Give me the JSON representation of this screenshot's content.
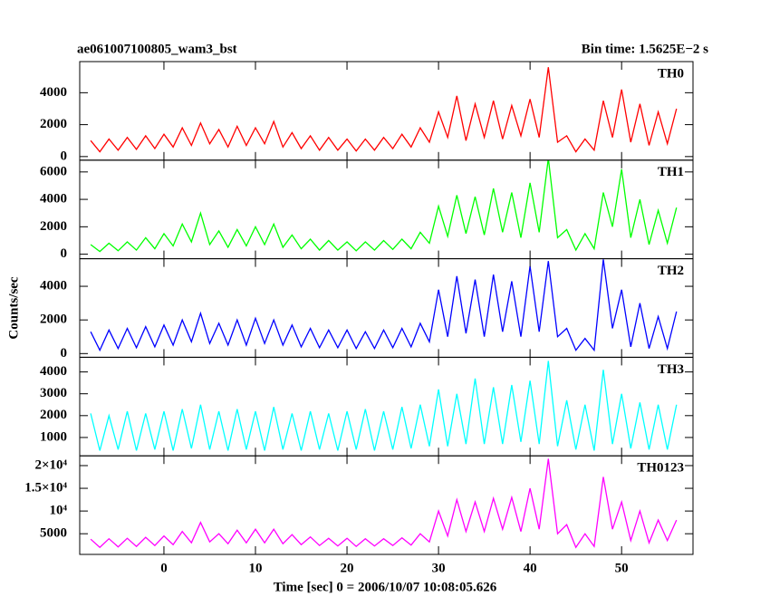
{
  "title": "ae061007100805_wam3_bst",
  "subtitle": "Bin time: 1.5625E−2 s",
  "ylabel": "Counts/sec",
  "xlabel": "Time [sec] 0 = 2006/10/07 10:08:05.626",
  "chart_data": [
    {
      "type": "line",
      "label": "TH0",
      "color": "#ff0000",
      "x": [
        -8,
        -7,
        -6,
        -5,
        -4,
        -3,
        -2,
        -1,
        0,
        1,
        2,
        3,
        4,
        5,
        6,
        7,
        8,
        9,
        10,
        11,
        12,
        13,
        14,
        15,
        16,
        17,
        18,
        19,
        20,
        21,
        22,
        23,
        24,
        25,
        26,
        27,
        28,
        29,
        30,
        31,
        32,
        33,
        34,
        35,
        36,
        37,
        38,
        39,
        40,
        41,
        42,
        43,
        44,
        45,
        46,
        47,
        48,
        49,
        50,
        51,
        52,
        53,
        54,
        55,
        56
      ],
      "values": [
        1000,
        300,
        1100,
        400,
        1200,
        450,
        1300,
        500,
        1400,
        600,
        1800,
        700,
        2100,
        800,
        1700,
        600,
        1900,
        700,
        1800,
        800,
        2200,
        600,
        1500,
        500,
        1300,
        400,
        1200,
        400,
        1100,
        350,
        1100,
        400,
        1200,
        500,
        1400,
        600,
        1800,
        900,
        2800,
        1200,
        3800,
        1000,
        3300,
        1200,
        3500,
        1100,
        3200,
        1300,
        3600,
        1200,
        5600,
        900,
        1300,
        300,
        1100,
        400,
        3500,
        1200,
        4200,
        900,
        3300,
        700,
        2800,
        800,
        3000
      ],
      "xlim": [
        -9.2,
        57.8
      ],
      "xticks": [
        0,
        10,
        20,
        30,
        40,
        50
      ],
      "ylim": [
        -225,
        5950
      ],
      "yticks": [
        0,
        2000,
        4000
      ]
    },
    {
      "type": "line",
      "label": "TH1",
      "color": "#00ff00",
      "x": [
        -8,
        -7,
        -6,
        -5,
        -4,
        -3,
        -2,
        -1,
        0,
        1,
        2,
        3,
        4,
        5,
        6,
        7,
        8,
        9,
        10,
        11,
        12,
        13,
        14,
        15,
        16,
        17,
        18,
        19,
        20,
        21,
        22,
        23,
        24,
        25,
        26,
        27,
        28,
        29,
        30,
        31,
        32,
        33,
        34,
        35,
        36,
        37,
        38,
        39,
        40,
        41,
        42,
        43,
        44,
        45,
        46,
        47,
        48,
        49,
        50,
        51,
        52,
        53,
        54,
        55,
        56
      ],
      "values": [
        700,
        200,
        800,
        250,
        900,
        300,
        1200,
        400,
        1500,
        600,
        2200,
        900,
        3000,
        700,
        1700,
        500,
        1800,
        600,
        2000,
        700,
        2200,
        500,
        1400,
        400,
        1100,
        300,
        1000,
        300,
        900,
        250,
        900,
        300,
        1000,
        350,
        1100,
        400,
        1600,
        800,
        3500,
        1300,
        4300,
        1500,
        4200,
        1400,
        4800,
        1600,
        4500,
        1200,
        5200,
        1600,
        7000,
        1200,
        1800,
        300,
        1500,
        400,
        4500,
        2000,
        6200,
        1200,
        4000,
        700,
        3200,
        800,
        3400
      ],
      "xlim": [
        -9.2,
        57.8
      ],
      "xticks": [
        0,
        10,
        20,
        30,
        40,
        50
      ],
      "ylim": [
        -330,
        6860
      ],
      "yticks": [
        0,
        2000,
        4000,
        6000
      ]
    },
    {
      "type": "line",
      "label": "TH2",
      "color": "#0000ff",
      "x": [
        -8,
        -7,
        -6,
        -5,
        -4,
        -3,
        -2,
        -1,
        0,
        1,
        2,
        3,
        4,
        5,
        6,
        7,
        8,
        9,
        10,
        11,
        12,
        13,
        14,
        15,
        16,
        17,
        18,
        19,
        20,
        21,
        22,
        23,
        24,
        25,
        26,
        27,
        28,
        29,
        30,
        31,
        32,
        33,
        34,
        35,
        36,
        37,
        38,
        39,
        40,
        41,
        42,
        43,
        44,
        45,
        46,
        47,
        48,
        49,
        50,
        51,
        52,
        53,
        54,
        55,
        56
      ],
      "values": [
        1300,
        200,
        1400,
        300,
        1500,
        350,
        1600,
        400,
        1700,
        500,
        2000,
        700,
        2400,
        600,
        1800,
        500,
        2000,
        500,
        2100,
        600,
        2000,
        500,
        1700,
        400,
        1500,
        350,
        1400,
        350,
        1400,
        300,
        1300,
        300,
        1400,
        350,
        1500,
        400,
        1800,
        700,
        3800,
        1000,
        4600,
        1200,
        4400,
        1000,
        4700,
        1300,
        4300,
        1000,
        5200,
        1300,
        5500,
        1000,
        1500,
        200,
        900,
        200,
        5600,
        1500,
        3800,
        400,
        3000,
        300,
        2200,
        300,
        2500
      ],
      "xlim": [
        -9.2,
        57.8
      ],
      "xticks": [
        0,
        10,
        20,
        30,
        40,
        50
      ],
      "ylim": [
        -220,
        5640
      ],
      "yticks": [
        0,
        2000,
        4000
      ]
    },
    {
      "type": "line",
      "label": "TH3",
      "color": "#00ffff",
      "x": [
        -8,
        -7,
        -6,
        -5,
        -4,
        -3,
        -2,
        -1,
        0,
        1,
        2,
        3,
        4,
        5,
        6,
        7,
        8,
        9,
        10,
        11,
        12,
        13,
        14,
        15,
        16,
        17,
        18,
        19,
        20,
        21,
        22,
        23,
        24,
        25,
        26,
        27,
        28,
        29,
        30,
        31,
        32,
        33,
        34,
        35,
        36,
        37,
        38,
        39,
        40,
        41,
        42,
        43,
        44,
        45,
        46,
        47,
        48,
        49,
        50,
        51,
        52,
        53,
        54,
        55,
        56
      ],
      "values": [
        2100,
        400,
        2000,
        450,
        2200,
        400,
        2100,
        450,
        2200,
        400,
        2300,
        500,
        2500,
        450,
        2200,
        400,
        2300,
        450,
        2200,
        400,
        2400,
        450,
        2100,
        400,
        2200,
        450,
        2100,
        400,
        2200,
        450,
        2300,
        400,
        2200,
        450,
        2400,
        500,
        2500,
        600,
        3200,
        600,
        3000,
        700,
        3700,
        700,
        3300,
        700,
        3400,
        800,
        3600,
        700,
        4500,
        600,
        2700,
        450,
        2500,
        400,
        4100,
        700,
        3000,
        500,
        2600,
        450,
        2500,
        450,
        2500
      ],
      "xlim": [
        -9.2,
        57.8
      ],
      "xticks": [
        0,
        10,
        20,
        30,
        40,
        50
      ],
      "ylim": [
        160,
        4670
      ],
      "yticks": [
        1000,
        2000,
        3000,
        4000
      ]
    },
    {
      "type": "line",
      "label": "TH0123",
      "color": "#ff00ff",
      "x": [
        -8,
        -7,
        -6,
        -5,
        -4,
        -3,
        -2,
        -1,
        0,
        1,
        2,
        3,
        4,
        5,
        6,
        7,
        8,
        9,
        10,
        11,
        12,
        13,
        14,
        15,
        16,
        17,
        18,
        19,
        20,
        21,
        22,
        23,
        24,
        25,
        26,
        27,
        28,
        29,
        30,
        31,
        32,
        33,
        34,
        35,
        36,
        37,
        38,
        39,
        40,
        41,
        42,
        43,
        44,
        45,
        46,
        47,
        48,
        49,
        50,
        51,
        52,
        53,
        54,
        55,
        56
      ],
      "values": [
        3800,
        2000,
        3900,
        2100,
        4000,
        2200,
        4200,
        2400,
        4500,
        2600,
        5500,
        3000,
        7500,
        3200,
        5000,
        2800,
        5800,
        3000,
        6000,
        3000,
        6000,
        2800,
        4800,
        2600,
        4300,
        2400,
        4000,
        2300,
        4000,
        2200,
        3900,
        2300,
        3900,
        2400,
        4100,
        2500,
        5000,
        3200,
        10000,
        4500,
        12500,
        5500,
        12000,
        5500,
        12800,
        6000,
        13000,
        5500,
        15000,
        6000,
        21500,
        5000,
        7000,
        2000,
        5000,
        2200,
        17500,
        6000,
        12000,
        3500,
        10000,
        3000,
        8000,
        3500,
        8000
      ],
      "xlim": [
        -9.2,
        57.8
      ],
      "xticks": [
        0,
        10,
        20,
        30,
        40,
        50
      ],
      "ylim": [
        450,
        22150
      ],
      "yticks": [
        5000,
        {
          "value": 10000,
          "label": "10⁴"
        },
        {
          "value": 15000,
          "label": "1.5×10⁴"
        },
        {
          "value": 20000,
          "label": "2×10⁴"
        }
      ]
    }
  ]
}
